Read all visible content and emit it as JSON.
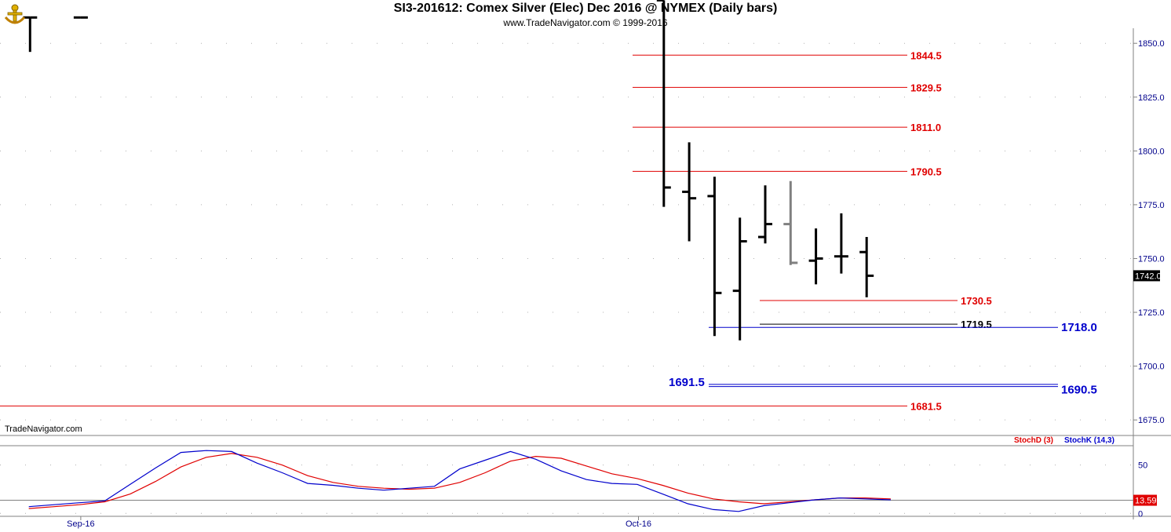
{
  "header": {
    "title": "SI3-201612:  Comex Silver (Elec) Dec 2016 @ NYMEX  (Daily bars)",
    "subtitle": "www.TradeNavigator.com © 1999-2016",
    "watermark": "TradeNavigator.com"
  },
  "colors": {
    "bar": "#000000",
    "gray_bar": "#808080",
    "red": "#e00000",
    "blue": "#0000cc",
    "axis_text": "#00008b"
  },
  "chart_data": [
    {
      "type": "bar",
      "subtype": "ohlc",
      "title": "SI3-201612:  Comex Silver (Elec) Dec 2016 @ NYMEX  (Daily bars)",
      "y_ticks": [
        1675.0,
        1700.0,
        1725.0,
        1750.0,
        1775.0,
        1800.0,
        1825.0,
        1850.0
      ],
      "y_tick_labels": [
        "1675.0",
        "1700.0",
        "1725.0",
        "1750.0",
        "1775.0",
        "1800.0",
        "1825.0",
        "1850.0"
      ],
      "ylim": [
        1668.5,
        1857
      ],
      "x_labels": [
        {
          "label": "Sep-16",
          "index": 3
        },
        {
          "label": "Oct-16",
          "index": 25
        }
      ],
      "last_price": "1742.0",
      "bars": [
        {
          "i": 1,
          "open": 1862,
          "high": 1862,
          "low": 1846,
          "close": 1862,
          "color": "black"
        },
        {
          "i": 3,
          "open": 1862,
          "high": 1862,
          "low": 1862,
          "close": 1862,
          "color": "black"
        },
        {
          "i": 26,
          "open": 1870,
          "high": 1870,
          "low": 1774,
          "close": 1783,
          "color": "black"
        },
        {
          "i": 27,
          "open": 1781,
          "high": 1804,
          "low": 1758,
          "close": 1778,
          "color": "black"
        },
        {
          "i": 28,
          "open": 1779,
          "high": 1788,
          "low": 1714,
          "close": 1734,
          "color": "black"
        },
        {
          "i": 29,
          "open": 1735,
          "high": 1769,
          "low": 1712,
          "close": 1758,
          "color": "black"
        },
        {
          "i": 30,
          "open": 1760,
          "high": 1784,
          "low": 1757,
          "close": 1766,
          "color": "black"
        },
        {
          "i": 31,
          "open": 1766,
          "high": 1786,
          "low": 1747,
          "close": 1748,
          "color": "gray"
        },
        {
          "i": 32,
          "open": 1749,
          "high": 1764,
          "low": 1738,
          "close": 1750,
          "color": "black"
        },
        {
          "i": 33,
          "open": 1751,
          "high": 1771,
          "low": 1743,
          "close": 1751,
          "color": "black"
        },
        {
          "i": 34,
          "open": 1753,
          "high": 1760,
          "low": 1732,
          "close": 1742,
          "color": "black"
        }
      ],
      "levels": [
        {
          "value": 1844.5,
          "label": "1844.5",
          "color": "red"
        },
        {
          "value": 1829.5,
          "label": "1829.5",
          "color": "red"
        },
        {
          "value": 1811.0,
          "label": "1811.0",
          "color": "red"
        },
        {
          "value": 1790.5,
          "label": "1790.5",
          "color": "red"
        },
        {
          "value": 1730.5,
          "label": "1730.5",
          "color": "red"
        },
        {
          "value": 1719.5,
          "label": "1719.5",
          "color": "black"
        },
        {
          "value": 1718.0,
          "label": "1718.0",
          "color": "blue"
        },
        {
          "value": 1691.5,
          "label": "1691.5",
          "color": "blue"
        },
        {
          "value": 1690.5,
          "label": "1690.5",
          "color": "blue"
        },
        {
          "value": 1681.5,
          "label": "1681.5",
          "color": "red"
        }
      ]
    },
    {
      "type": "line",
      "ylim": [
        -3,
        70
      ],
      "y_ticks": [
        0,
        50
      ],
      "y_tick_labels": [
        "0",
        "50"
      ],
      "last_value": "13.59",
      "series": [
        {
          "name": "StochD (3)",
          "color": "red",
          "values": [
            5,
            7,
            9,
            12,
            20,
            33,
            48,
            58,
            62,
            58,
            50,
            39,
            32,
            28,
            26,
            25,
            26,
            32,
            42,
            54,
            59,
            57,
            49,
            41,
            36,
            29,
            21,
            15,
            12,
            10,
            12,
            14,
            16,
            16,
            15
          ]
        },
        {
          "name": "StochK (14,3)",
          "color": "blue",
          "values": [
            7,
            9,
            11,
            13,
            30,
            47,
            63,
            65,
            64,
            52,
            42,
            31,
            29,
            26,
            24,
            26,
            28,
            46,
            55,
            64,
            56,
            44,
            35,
            31,
            30,
            20,
            10,
            4,
            2,
            8,
            11,
            14,
            16,
            15,
            14
          ]
        }
      ]
    }
  ]
}
